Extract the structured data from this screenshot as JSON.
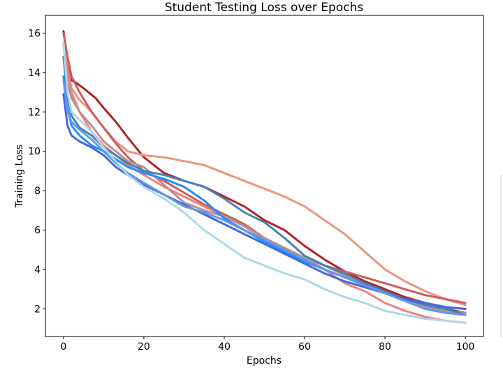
{
  "chart_data": {
    "type": "line",
    "title": "Student Testing Loss over Epochs",
    "xlabel": "Epochs",
    "ylabel": "Training Loss",
    "xlim": [
      -4.5,
      104.5
    ],
    "ylim": [
      0.6,
      16.9
    ],
    "xticks": [
      0,
      20,
      40,
      60,
      80,
      100
    ],
    "yticks": [
      2,
      4,
      6,
      8,
      10,
      12,
      14,
      16
    ],
    "grid": false,
    "legend_placement": "right (partially cut off)",
    "series": [
      {
        "color": "#b22222",
        "x": [
          0,
          1,
          2,
          3,
          5,
          8,
          10,
          13,
          16,
          20,
          25,
          30,
          35,
          40,
          45,
          50,
          55,
          60,
          65,
          70,
          75,
          80,
          85,
          90,
          95,
          100
        ],
        "y": [
          16.1,
          14.5,
          13.6,
          13.5,
          13.2,
          12.7,
          12.2,
          11.5,
          10.7,
          9.7,
          8.9,
          8.5,
          8.2,
          7.7,
          7.2,
          6.5,
          6.0,
          5.2,
          4.5,
          3.9,
          3.4,
          3.0,
          2.6,
          2.3,
          2.0,
          1.8
        ]
      },
      {
        "color": "#e9967a",
        "x": [
          0,
          1,
          2,
          4,
          7,
          10,
          13,
          16,
          20,
          25,
          30,
          35,
          40,
          45,
          50,
          55,
          60,
          65,
          70,
          75,
          80,
          85,
          90,
          95,
          100
        ],
        "y": [
          15.5,
          14.2,
          13.2,
          12.6,
          12.0,
          11.2,
          10.5,
          10.0,
          9.8,
          9.7,
          9.5,
          9.3,
          8.9,
          8.5,
          8.1,
          7.7,
          7.2,
          6.5,
          5.8,
          4.9,
          4.0,
          3.4,
          2.9,
          2.5,
          2.2
        ]
      },
      {
        "color": "#cd5c5c",
        "x": [
          0,
          1,
          2,
          4,
          7,
          10,
          13,
          16,
          20,
          25,
          30,
          35,
          40,
          45,
          50,
          55,
          60,
          65,
          70,
          75,
          80,
          85,
          90,
          95,
          100
        ],
        "y": [
          16.0,
          14.8,
          13.8,
          13.0,
          12.0,
          11.2,
          10.4,
          9.7,
          9.0,
          8.5,
          7.9,
          7.3,
          6.8,
          6.3,
          5.6,
          5.0,
          4.6,
          4.2,
          3.9,
          3.6,
          3.3,
          3.0,
          2.7,
          2.5,
          2.3
        ]
      },
      {
        "color": "#f08080",
        "x": [
          0,
          1,
          2,
          4,
          7,
          10,
          13,
          16,
          20,
          25,
          30,
          35,
          40,
          45,
          50,
          55,
          60,
          65,
          70,
          75,
          80,
          85,
          90,
          95,
          100
        ],
        "y": [
          15.4,
          14.0,
          13.0,
          12.0,
          11.0,
          10.3,
          9.8,
          9.3,
          8.8,
          8.2,
          7.7,
          7.2,
          6.7,
          6.2,
          5.5,
          5.0,
          4.6,
          4.0,
          3.3,
          2.9,
          2.3,
          1.9,
          1.6,
          1.4,
          1.3
        ]
      },
      {
        "color": "#bc8f8f",
        "x": [
          0,
          1,
          2,
          4,
          7,
          10,
          13,
          16,
          20,
          25,
          30,
          35,
          40,
          45,
          50,
          55,
          60,
          65,
          70,
          75,
          80,
          85,
          90,
          95,
          100
        ],
        "y": [
          14.8,
          13.5,
          12.7,
          12.0,
          11.3,
          10.5,
          10.0,
          9.5,
          9.2,
          8.3,
          7.4,
          7.0,
          6.7,
          6.2,
          5.6,
          5.1,
          4.6,
          4.2,
          3.7,
          3.3,
          2.8,
          2.4,
          2.1,
          1.9,
          1.8
        ]
      },
      {
        "color": "#4682b4",
        "x": [
          0,
          1,
          2,
          4,
          7,
          10,
          13,
          16,
          20,
          25,
          30,
          35,
          40,
          45,
          50,
          55,
          60,
          65,
          70,
          75,
          80,
          85,
          90,
          95,
          100
        ],
        "y": [
          14.8,
          12.8,
          11.8,
          11.2,
          10.8,
          10.2,
          9.8,
          9.4,
          9.0,
          8.8,
          8.5,
          8.2,
          7.6,
          6.9,
          6.4,
          5.6,
          4.7,
          4.2,
          3.8,
          3.3,
          2.9,
          2.5,
          2.2,
          2.0,
          1.7
        ]
      },
      {
        "color": "#1e90ff",
        "x": [
          0,
          1,
          2,
          4,
          7,
          10,
          13,
          16,
          20,
          25,
          30,
          35,
          40,
          45,
          50,
          55,
          60,
          65,
          70,
          75,
          80,
          85,
          90,
          95,
          100
        ],
        "y": [
          13.8,
          12.2,
          11.3,
          10.8,
          10.3,
          10.0,
          9.6,
          9.2,
          8.9,
          8.6,
          8.2,
          7.5,
          6.6,
          6.0,
          5.4,
          4.9,
          4.4,
          4.0,
          3.6,
          3.2,
          2.8,
          2.5,
          2.3,
          2.1,
          2.0
        ]
      },
      {
        "color": "#4169e1",
        "x": [
          0,
          1,
          2,
          4,
          7,
          10,
          13,
          16,
          20,
          25,
          30,
          35,
          40,
          45,
          50,
          55,
          60,
          65,
          70,
          75,
          80,
          85,
          90,
          95,
          100
        ],
        "y": [
          12.9,
          11.3,
          10.8,
          10.5,
          10.2,
          9.8,
          9.2,
          8.8,
          8.3,
          7.8,
          7.3,
          6.8,
          6.3,
          5.8,
          5.3,
          4.8,
          4.3,
          3.8,
          3.4,
          3.1,
          2.8,
          2.5,
          2.3,
          2.1,
          2.0
        ]
      },
      {
        "color": "#6495ed",
        "x": [
          0,
          1,
          2,
          4,
          7,
          10,
          13,
          16,
          20,
          25,
          30,
          35,
          40,
          45,
          50,
          55,
          60,
          65,
          70,
          75,
          80,
          85,
          90,
          95,
          100
        ],
        "y": [
          13.6,
          12.0,
          11.5,
          11.1,
          10.6,
          10.0,
          9.4,
          8.9,
          8.4,
          7.8,
          7.2,
          6.9,
          6.5,
          6.0,
          5.5,
          5.0,
          4.5,
          4.0,
          3.6,
          3.2,
          2.8,
          2.4,
          2.0,
          1.8,
          1.7
        ]
      },
      {
        "color": "#add8e6",
        "x": [
          0,
          1,
          2,
          4,
          7,
          10,
          13,
          16,
          20,
          25,
          30,
          35,
          40,
          45,
          50,
          55,
          60,
          65,
          70,
          75,
          80,
          85,
          90,
          95,
          100
        ],
        "y": [
          15.5,
          13.0,
          12.0,
          11.6,
          11.0,
          10.2,
          9.5,
          8.8,
          8.2,
          7.6,
          6.9,
          6.0,
          5.3,
          4.6,
          4.2,
          3.8,
          3.5,
          3.0,
          2.6,
          2.3,
          1.9,
          1.7,
          1.5,
          1.4,
          1.3
        ]
      }
    ]
  }
}
